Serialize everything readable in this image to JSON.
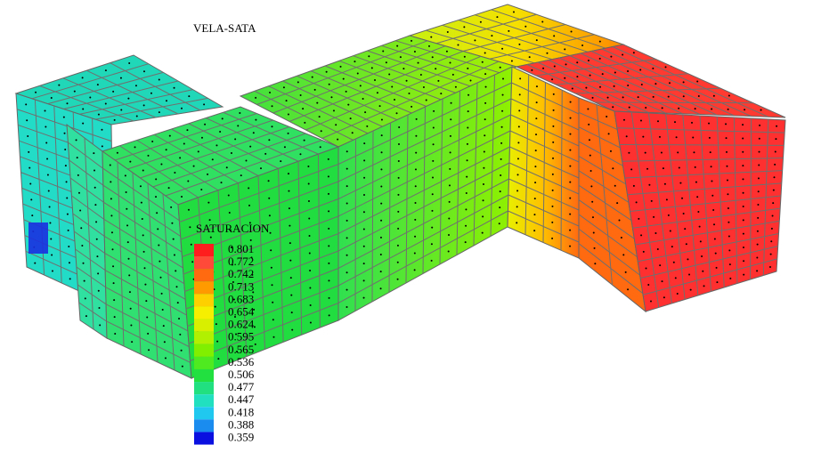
{
  "title": "VELA-SATA",
  "legend": {
    "title": "SATURACION",
    "labels": [
      "0.801",
      "0.772",
      "0.742",
      "0.713",
      "0.683",
      "0.654",
      "0.624",
      "0.595",
      "0.565",
      "0.536",
      "0.506",
      "0.477",
      "0.447",
      "0.418",
      "0.388",
      "0.359"
    ],
    "colors": [
      "#ff1e1e",
      "#ff4a3a",
      "#ff6a10",
      "#ff9a00",
      "#ffd000",
      "#f6f000",
      "#d8f000",
      "#b0f000",
      "#80f000",
      "#50ea20",
      "#22e040",
      "#20e080",
      "#20e0c0",
      "#20c8f0",
      "#1a8cf0",
      "#0a10e0"
    ]
  }
}
